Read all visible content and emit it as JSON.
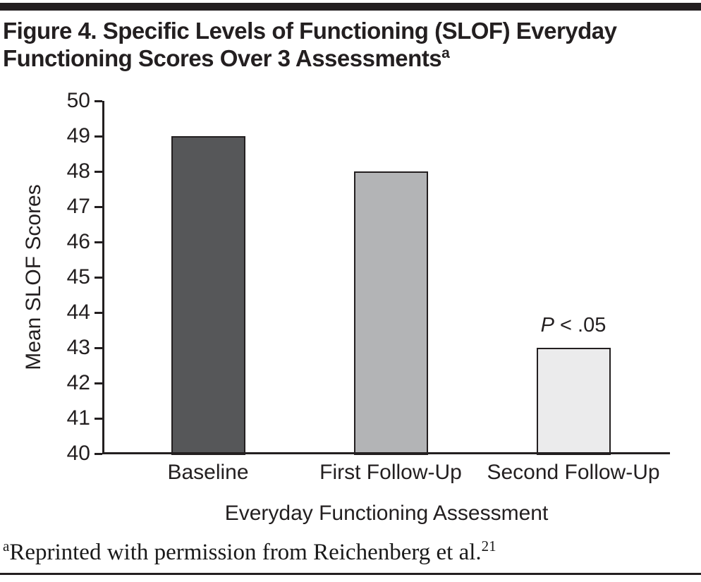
{
  "figure": {
    "title_line1": "Figure 4. Specific Levels of Functioning (SLOF) Everyday",
    "title_line2": "Functioning Scores Over 3 Assessments",
    "title_superscript": "a",
    "footnote_marker": "a",
    "footnote_text": "Reprinted with permission from Reichenberg et al.",
    "footnote_ref": "21"
  },
  "colors": {
    "rule": "#231f20",
    "axis": "#231f20",
    "text": "#231f20",
    "bar_border": "#231f20"
  },
  "chart_data": {
    "type": "bar",
    "title": "",
    "categories": [
      "Baseline",
      "First Follow-Up",
      "Second Follow-Up"
    ],
    "values": [
      49,
      48,
      43
    ],
    "bar_colors": [
      "#565759",
      "#b3b4b6",
      "#ebebec"
    ],
    "xlabel": "Everyday Functioning Assessment",
    "ylabel": "Mean SLOF Scores",
    "ylim": [
      40,
      50
    ],
    "yticks": [
      40,
      41,
      42,
      43,
      44,
      45,
      46,
      47,
      48,
      49,
      50
    ],
    "grid": false,
    "legend": "none",
    "annotation": {
      "italic_part": "P",
      "rest_part": " < .05",
      "bar_index": 2
    }
  }
}
